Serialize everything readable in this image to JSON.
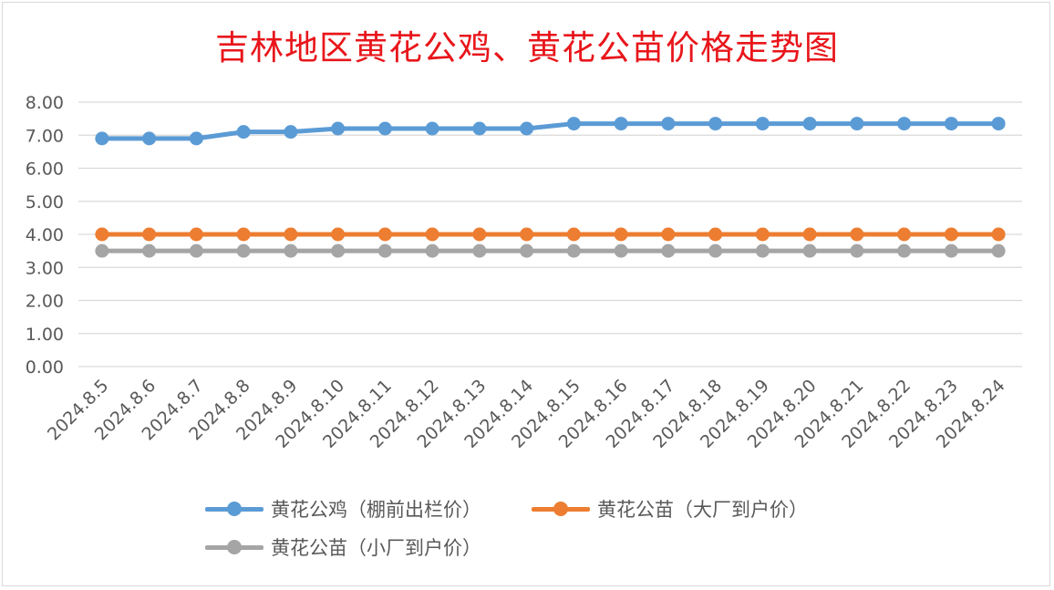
{
  "chart_data": {
    "type": "line",
    "title": "吉林地区黄花公鸡、黄花公苗价格走势图",
    "xlabel": "",
    "ylabel": "",
    "ylim": [
      0,
      8
    ],
    "ytick_step": 1,
    "ytick_labels": [
      "0.00",
      "1.00",
      "2.00",
      "3.00",
      "4.00",
      "5.00",
      "6.00",
      "7.00",
      "8.00"
    ],
    "grid": true,
    "legend_position": "bottom",
    "categories": [
      "2024.8.5",
      "2024.8.6",
      "2024.8.7",
      "2024.8.8",
      "2024.8.9",
      "2024.8.10",
      "2024.8.11",
      "2024.8.12",
      "2024.8.13",
      "2024.8.14",
      "2024.8.15",
      "2024.8.16",
      "2024.8.17",
      "2024.8.18",
      "2024.8.19",
      "2024.8.20",
      "2024.8.21",
      "2024.8.22",
      "2024.8.23",
      "2024.8.24"
    ],
    "series": [
      {
        "name": "黄花公鸡（棚前出栏价）",
        "color": "#5b9bd5",
        "values": [
          6.9,
          6.9,
          6.9,
          7.1,
          7.1,
          7.2,
          7.2,
          7.2,
          7.2,
          7.2,
          7.35,
          7.35,
          7.35,
          7.35,
          7.35,
          7.35,
          7.35,
          7.35,
          7.35,
          7.35
        ]
      },
      {
        "name": "黄花公苗（大厂到户价）",
        "color": "#ed7d31",
        "values": [
          4.0,
          4.0,
          4.0,
          4.0,
          4.0,
          4.0,
          4.0,
          4.0,
          4.0,
          4.0,
          4.0,
          4.0,
          4.0,
          4.0,
          4.0,
          4.0,
          4.0,
          4.0,
          4.0,
          4.0
        ]
      },
      {
        "name": "黄花公苗（小厂到户价）",
        "color": "#a5a5a5",
        "values": [
          3.5,
          3.5,
          3.5,
          3.5,
          3.5,
          3.5,
          3.5,
          3.5,
          3.5,
          3.5,
          3.5,
          3.5,
          3.5,
          3.5,
          3.5,
          3.5,
          3.5,
          3.5,
          3.5,
          3.5
        ]
      }
    ]
  },
  "colors": {
    "title": "#e8161b",
    "gridline": "#d9d9d9",
    "tick_text": "#595959"
  }
}
